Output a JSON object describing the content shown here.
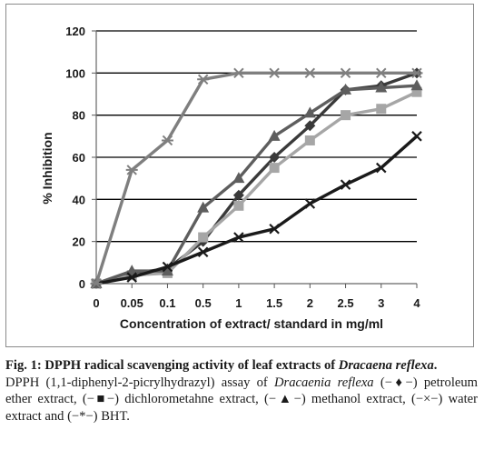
{
  "chart_data": {
    "type": "line",
    "categories": [
      "0",
      "0.05",
      "0.1",
      "0.5",
      "1",
      "1.5",
      "2",
      "2.5",
      "3",
      "4"
    ],
    "xlabel": "Concentration of extract/ standard in mg/ml",
    "ylabel": "% Inhibition",
    "ylim": [
      0,
      120
    ],
    "yticks": [
      "0",
      "20",
      "40",
      "60",
      "80",
      "100",
      "120"
    ],
    "grid": "horizontal",
    "series": [
      {
        "key": "petroleum_ether",
        "marker": "diamond",
        "color": "#3a3a3a",
        "values": [
          0,
          5,
          7,
          20,
          42,
          60,
          75,
          92,
          94,
          100
        ]
      },
      {
        "key": "dichloromethane",
        "marker": "square",
        "color": "#a6a6a6",
        "values": [
          0,
          4,
          5,
          22,
          37,
          55,
          68,
          80,
          83,
          91
        ]
      },
      {
        "key": "methanol",
        "marker": "triangle",
        "color": "#5e5e5e",
        "values": [
          0,
          6,
          6,
          36,
          50,
          70,
          81,
          92,
          93,
          94
        ]
      },
      {
        "key": "water",
        "marker": "cross",
        "color": "#1a1a1a",
        "values": [
          0,
          3,
          8,
          15,
          22,
          26,
          38,
          47,
          55,
          70
        ]
      },
      {
        "key": "bht",
        "marker": "star",
        "color": "#7f7f7f",
        "values": [
          0,
          54,
          68,
          97,
          100,
          100,
          100,
          100,
          100,
          100
        ]
      }
    ]
  },
  "caption": {
    "title_prefix": "Fig. 1: DPPH radical scavenging activity of leaf extracts of ",
    "title_species": "Dracaena reflexa",
    "title_suffix": ".",
    "body_1": "DPPH (1,1-diphenyl-2-picrylhydrazyl) assay of ",
    "body_species": "Dracaenia reflexa",
    "body_2": " (−♦−) petroleum ether extract, (−■−) dichlorometahne extract, (−▲−) methanol extract, (−×−) water extract and (−*−) BHT."
  }
}
